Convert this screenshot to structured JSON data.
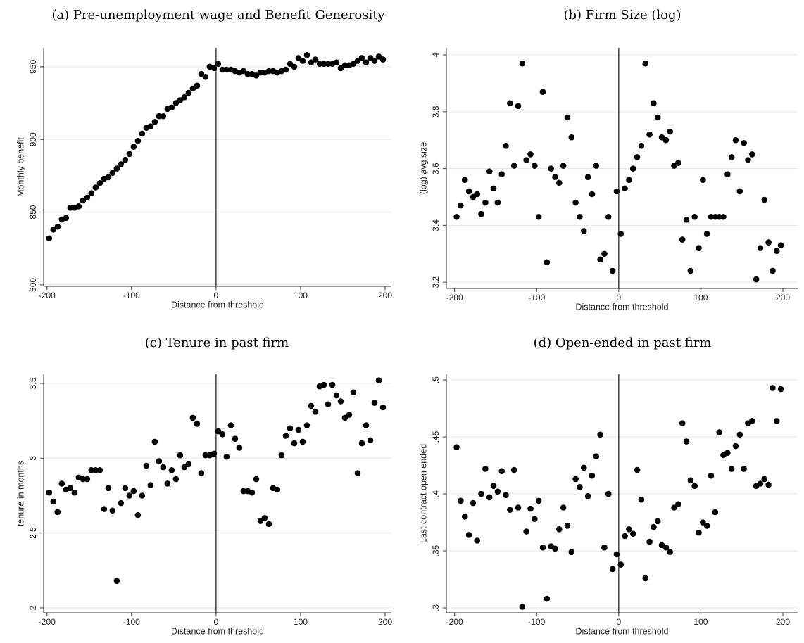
{
  "chart_data": [
    {
      "type": "scatter",
      "title": "(a) Pre-unemployment wage and Benefit Generosity",
      "xlabel": "Distance from threshold",
      "ylabel": "Monthly benefit",
      "color": "#000000",
      "grid": true,
      "vline": 0,
      "xlim": [
        -204,
        207.5
      ],
      "ylim": [
        799,
        963
      ],
      "xticks": [
        -200,
        -100,
        0,
        100,
        200
      ],
      "yticks": [
        800,
        850,
        900,
        950
      ],
      "x": [
        -197.5,
        -192.5,
        -187.5,
        -182.5,
        -177.5,
        -172.5,
        -167.5,
        -162.5,
        -157.5,
        -152.5,
        -147.5,
        -142.5,
        -137.5,
        -132.5,
        -127.5,
        -122.5,
        -117.5,
        -112.5,
        -107.5,
        -102.5,
        -97.5,
        -92.5,
        -87.5,
        -82.5,
        -77.5,
        -72.5,
        -67.5,
        -62.5,
        -57.5,
        -52.5,
        -47.5,
        -42.5,
        -37.5,
        -32.5,
        -27.5,
        -22.5,
        -17.5,
        -12.5,
        -7.5,
        -2.5,
        2.5,
        7.5,
        12.5,
        17.5,
        22.5,
        27.5,
        32.5,
        37.5,
        42.5,
        47.5,
        52.5,
        57.5,
        62.5,
        67.5,
        72.5,
        77.5,
        82.5,
        87.5,
        92.5,
        97.5,
        102.5,
        107.5,
        112.5,
        117.5,
        122.5,
        127.5,
        132.5,
        137.5,
        142.5,
        147.5,
        152.5,
        157.5,
        162.5,
        167.5,
        172.5,
        177.5,
        182.5,
        187.5,
        192.5,
        197.5
      ],
      "values": [
        832,
        838,
        840,
        845,
        846,
        853,
        853,
        854,
        858,
        860,
        863,
        867,
        870,
        873,
        874,
        877,
        880,
        883,
        886,
        890,
        895,
        899,
        904,
        908,
        909,
        912,
        916,
        916,
        921,
        922,
        925,
        927,
        929,
        932,
        935,
        937,
        945,
        943,
        950,
        949,
        952,
        948,
        948,
        948,
        947,
        946,
        947,
        945,
        945,
        944,
        946,
        946,
        947,
        947,
        946,
        947,
        948,
        952,
        950,
        956,
        954,
        958,
        953,
        955,
        952,
        952,
        952,
        952,
        953,
        949,
        951,
        951,
        952,
        954,
        956,
        953,
        956,
        954,
        957,
        955
      ]
    },
    {
      "type": "scatter",
      "title": "(b) Firm Size (log)",
      "xlabel": "Distance from threshold",
      "ylabel": "(log) avg size",
      "color": "#000000",
      "grid": true,
      "vline": 0,
      "xlim": [
        -210,
        218
      ],
      "ylim": [
        3.178,
        4.025
      ],
      "xticks": [
        -200,
        -100,
        0,
        100,
        200
      ],
      "yticks": [
        3.2,
        3.4,
        3.6,
        3.8,
        4
      ],
      "x": [
        -197.5,
        -192.5,
        -187.5,
        -182.5,
        -177.5,
        -172.5,
        -167.5,
        -162.5,
        -157.5,
        -152.5,
        -147.5,
        -142.5,
        -137.5,
        -132.5,
        -127.5,
        -122.5,
        -117.5,
        -112.5,
        -107.5,
        -102.5,
        -97.5,
        -92.5,
        -87.5,
        -82.5,
        -77.5,
        -72.5,
        -67.5,
        -62.5,
        -57.5,
        -52.5,
        -47.5,
        -42.5,
        -37.5,
        -32.5,
        -27.5,
        -22.5,
        -17.5,
        -12.5,
        -7.5,
        -2.5,
        2.5,
        7.5,
        12.5,
        17.5,
        22.5,
        27.5,
        32.5,
        37.5,
        42.5,
        47.5,
        52.5,
        57.5,
        62.5,
        67.5,
        72.5,
        77.5,
        82.5,
        87.5,
        92.5,
        97.5,
        102.5,
        107.5,
        112.5,
        117.5,
        122.5,
        127.5,
        132.5,
        137.5,
        142.5,
        147.5,
        152.5,
        157.5,
        162.5,
        167.5,
        172.5,
        177.5,
        182.5,
        187.5,
        192.5,
        197.5
      ],
      "values": [
        3.43,
        3.47,
        3.56,
        3.52,
        3.5,
        3.51,
        3.44,
        3.48,
        3.59,
        3.53,
        3.48,
        3.58,
        3.68,
        3.83,
        3.61,
        3.82,
        3.97,
        3.63,
        3.65,
        3.61,
        3.43,
        3.87,
        3.27,
        3.6,
        3.57,
        3.55,
        3.61,
        3.78,
        3.71,
        3.48,
        3.43,
        3.38,
        3.57,
        3.51,
        3.61,
        3.28,
        3.3,
        3.43,
        3.24,
        3.52,
        3.37,
        3.53,
        3.56,
        3.6,
        3.64,
        3.68,
        3.97,
        3.72,
        3.83,
        3.78,
        3.71,
        3.7,
        3.73,
        3.61,
        3.62,
        3.35,
        3.42,
        3.24,
        3.43,
        3.32,
        3.56,
        3.37,
        3.43,
        3.43,
        3.43,
        3.43,
        3.58,
        3.64,
        3.7,
        3.52,
        3.69,
        3.63,
        3.65,
        3.21,
        3.32,
        3.49,
        3.34,
        3.24,
        3.31,
        3.33
      ]
    },
    {
      "type": "scatter",
      "title": "(c) Tenure in past firm",
      "xlabel": "Distance from threshold",
      "ylabel": "tenure in months",
      "color": "#000000",
      "grid": true,
      "vline": 0,
      "xlim": [
        -204,
        207.5
      ],
      "ylim": [
        1.967,
        3.561
      ],
      "xticks": [
        -200,
        -100,
        0,
        100,
        200
      ],
      "yticks": [
        2,
        2.5,
        3,
        3.5
      ],
      "x": [
        -197.5,
        -192.5,
        -187.5,
        -182.5,
        -177.5,
        -172.5,
        -167.5,
        -162.5,
        -157.5,
        -152.5,
        -147.5,
        -142.5,
        -137.5,
        -132.5,
        -127.5,
        -122.5,
        -117.5,
        -112.5,
        -107.5,
        -102.5,
        -97.5,
        -92.5,
        -87.5,
        -82.5,
        -77.5,
        -72.5,
        -67.5,
        -62.5,
        -57.5,
        -52.5,
        -47.5,
        -42.5,
        -37.5,
        -32.5,
        -27.5,
        -22.5,
        -17.5,
        -12.5,
        -7.5,
        -2.5,
        2.5,
        7.5,
        12.5,
        17.5,
        22.5,
        27.5,
        32.5,
        37.5,
        42.5,
        47.5,
        52.5,
        57.5,
        62.5,
        67.5,
        72.5,
        77.5,
        82.5,
        87.5,
        92.5,
        97.5,
        102.5,
        107.5,
        112.5,
        117.5,
        122.5,
        127.5,
        132.5,
        137.5,
        142.5,
        147.5,
        152.5,
        157.5,
        162.5,
        167.5,
        172.5,
        177.5,
        182.5,
        187.5,
        192.5,
        197.5
      ],
      "values": [
        2.77,
        2.71,
        2.64,
        2.83,
        2.79,
        2.8,
        2.77,
        2.87,
        2.86,
        2.86,
        2.92,
        2.92,
        2.92,
        2.66,
        2.8,
        2.65,
        2.18,
        2.7,
        2.8,
        2.75,
        2.78,
        2.62,
        2.75,
        2.95,
        2.82,
        3.11,
        2.98,
        2.94,
        2.83,
        2.92,
        2.86,
        3.02,
        2.94,
        2.96,
        3.27,
        3.23,
        2.9,
        3.02,
        3.02,
        3.03,
        3.18,
        3.16,
        3.01,
        3.22,
        3.13,
        3.07,
        2.78,
        2.78,
        2.77,
        2.86,
        2.58,
        2.6,
        2.56,
        2.8,
        2.79,
        3.02,
        3.15,
        3.2,
        3.1,
        3.19,
        3.11,
        3.22,
        3.35,
        3.31,
        3.48,
        3.49,
        3.36,
        3.49,
        3.42,
        3.38,
        3.27,
        3.29,
        3.44,
        2.9,
        3.1,
        3.22,
        3.12,
        3.37,
        3.52,
        3.34
      ]
    },
    {
      "type": "scatter",
      "title": "(d) Open-ended in past firm",
      "xlabel": "Distance from threshold",
      "ylabel": "Last contract open ended",
      "color": "#000000",
      "grid": true,
      "vline": 0,
      "xlim": [
        -210,
        218
      ],
      "ylim": [
        0.2957,
        0.505
      ],
      "xticks": [
        -200,
        -100,
        0,
        100,
        200
      ],
      "yticks": [
        {
          "value": 0.3,
          "label": ".3"
        },
        {
          "value": 0.35,
          "label": ".35"
        },
        {
          "value": 0.4,
          "label": ".4"
        },
        {
          "value": 0.45,
          "label": ".45"
        },
        {
          "value": 0.5,
          "label": ".5"
        }
      ],
      "x": [
        -197.5,
        -192.5,
        -187.5,
        -182.5,
        -177.5,
        -172.5,
        -167.5,
        -162.5,
        -157.5,
        -152.5,
        -147.5,
        -142.5,
        -137.5,
        -132.5,
        -127.5,
        -122.5,
        -117.5,
        -112.5,
        -107.5,
        -102.5,
        -97.5,
        -92.5,
        -87.5,
        -82.5,
        -77.5,
        -72.5,
        -67.5,
        -62.5,
        -57.5,
        -52.5,
        -47.5,
        -42.5,
        -37.5,
        -32.5,
        -27.5,
        -22.5,
        -17.5,
        -12.5,
        -7.5,
        -2.5,
        2.5,
        7.5,
        12.5,
        17.5,
        22.5,
        27.5,
        32.5,
        37.5,
        42.5,
        47.5,
        52.5,
        57.5,
        62.5,
        67.5,
        72.5,
        77.5,
        82.5,
        87.5,
        92.5,
        97.5,
        102.5,
        107.5,
        112.5,
        117.5,
        122.5,
        127.5,
        132.5,
        137.5,
        142.5,
        147.5,
        152.5,
        157.5,
        162.5,
        167.5,
        172.5,
        177.5,
        182.5,
        187.5,
        192.5,
        197.5
      ],
      "values": [
        0.441,
        0.394,
        0.38,
        0.364,
        0.392,
        0.359,
        0.4,
        0.422,
        0.397,
        0.407,
        0.402,
        0.42,
        0.399,
        0.386,
        0.421,
        0.388,
        0.301,
        0.367,
        0.387,
        0.378,
        0.394,
        0.353,
        0.308,
        0.354,
        0.352,
        0.369,
        0.388,
        0.372,
        0.349,
        0.413,
        0.406,
        0.423,
        0.398,
        0.416,
        0.433,
        0.452,
        0.353,
        0.4,
        0.334,
        0.347,
        0.338,
        0.363,
        0.369,
        0.365,
        0.421,
        0.395,
        0.326,
        0.358,
        0.371,
        0.376,
        0.355,
        0.353,
        0.349,
        0.388,
        0.391,
        0.462,
        0.446,
        0.412,
        0.407,
        0.366,
        0.375,
        0.372,
        0.416,
        0.384,
        0.454,
        0.434,
        0.436,
        0.422,
        0.442,
        0.452,
        0.422,
        0.462,
        0.464,
        0.407,
        0.409,
        0.413,
        0.408,
        0.493,
        0.464,
        0.492
      ]
    }
  ]
}
